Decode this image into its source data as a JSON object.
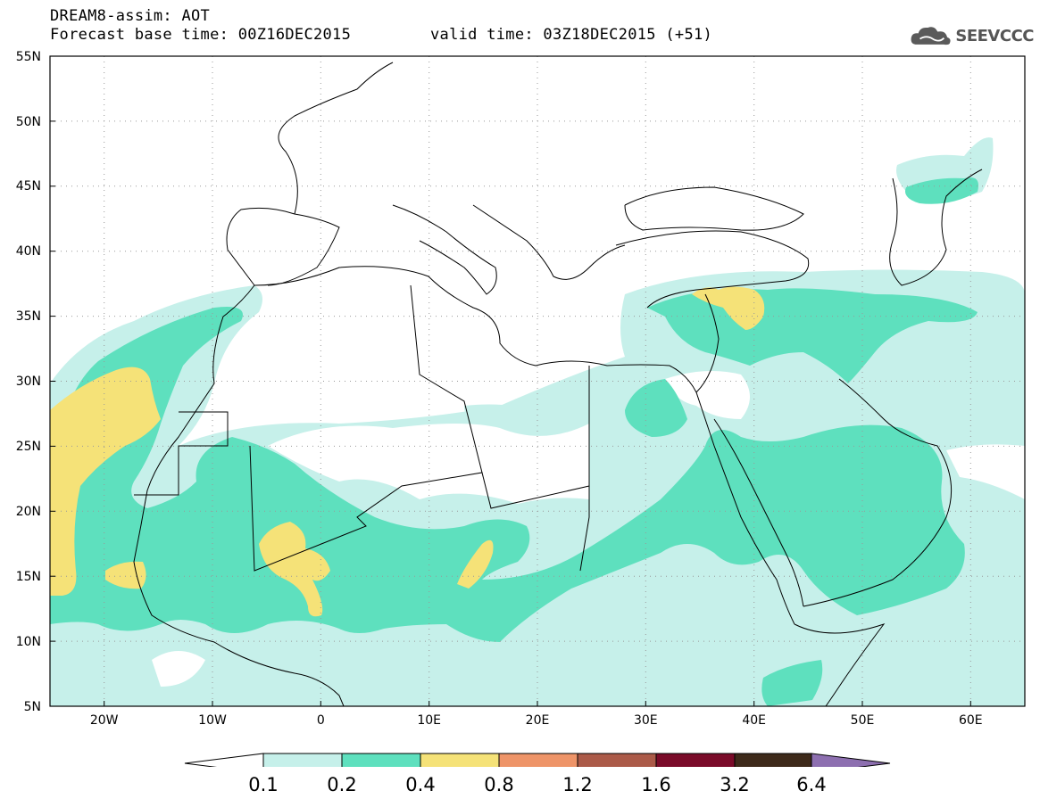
{
  "header": {
    "line1": "DREAM8-assim: AOT",
    "line2": "Forecast base time: 00Z16DEC2015",
    "line2b": "valid time: 03Z18DEC2015 (+51)",
    "logo_text": "SEEVCCC"
  },
  "map": {
    "extent": {
      "lon": [
        -25,
        65
      ],
      "lat": [
        5,
        55
      ]
    },
    "lat_ticks": [
      "5N",
      "10N",
      "15N",
      "20N",
      "25N",
      "30N",
      "35N",
      "40N",
      "45N",
      "50N",
      "55N"
    ],
    "lon_ticks": [
      "20W",
      "10W",
      "0",
      "10E",
      "20E",
      "30E",
      "40E",
      "50E",
      "60E"
    ],
    "grid": "dotted",
    "field": "AOT"
  },
  "colorbar": {
    "colors": [
      "#c6f0ea",
      "#5ee0be",
      "#f5e278",
      "#ee9468",
      "#ab5a48",
      "#7a0b29",
      "#3e2a1a",
      "#8d6fb0"
    ],
    "labels": [
      "0.1",
      "0.2",
      "0.4",
      "0.8",
      "1.2",
      "1.6",
      "3.2",
      "6.4"
    ]
  }
}
